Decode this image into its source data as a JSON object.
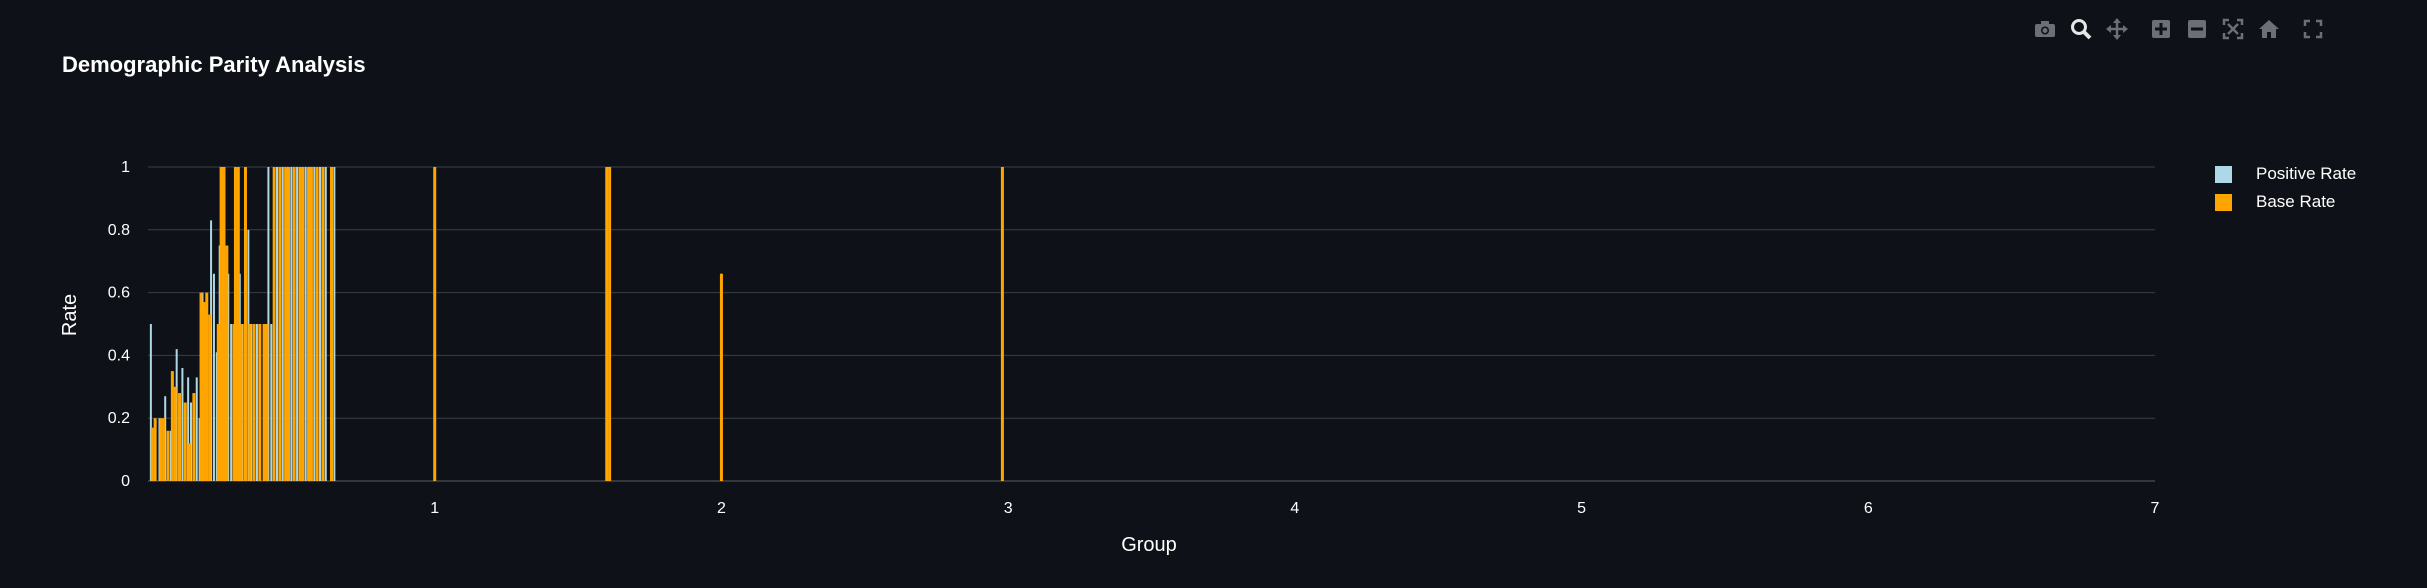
{
  "title": "Demographic Parity Analysis",
  "colors": {
    "background": "#0e1117",
    "grid": "#3a3f47",
    "positive": "#add8e6",
    "base": "#ffa500"
  },
  "modebar": [
    {
      "icon": "camera-icon"
    },
    {
      "icon": "zoom-icon"
    },
    {
      "icon": "pan-icon"
    },
    {
      "icon": "zoom-in-icon"
    },
    {
      "icon": "zoom-out-icon"
    },
    {
      "icon": "autoscale-icon"
    },
    {
      "icon": "home-icon"
    },
    {
      "icon": "fullscreen-icon"
    }
  ],
  "legend": [
    {
      "label": "Positive Rate",
      "color": "#add8e6"
    },
    {
      "label": "Base Rate",
      "color": "#ffa500"
    }
  ],
  "chart_data": {
    "type": "bar",
    "title": "Demographic Parity Analysis",
    "xlabel": "Group",
    "ylabel": "Rate",
    "xlim": [
      0,
      7
    ],
    "ylim": [
      0,
      1
    ],
    "xticks": [
      "1",
      "2",
      "3",
      "4",
      "5",
      "6",
      "7"
    ],
    "yticks": [
      "0",
      "0.2",
      "0.4",
      "0.6",
      "0.8",
      "1"
    ],
    "grid": true,
    "legend_position": "top-right",
    "series": [
      {
        "name": "Positive Rate",
        "color": "#add8e6",
        "x": [
          0.01,
          0.04,
          0.06,
          0.08,
          0.1,
          0.12,
          0.14,
          0.15,
          0.17,
          0.18,
          0.19,
          0.2,
          0.22,
          0.23,
          0.24,
          0.25,
          0.26,
          0.27,
          0.28,
          0.29,
          0.31,
          0.32,
          0.33,
          0.35,
          0.36,
          0.38,
          0.41,
          0.42,
          0.43,
          0.45,
          0.47,
          0.5,
          0.52,
          0.55,
          0.58,
          0.6,
          0.62,
          0.65,
          1.0,
          1.6,
          2.0,
          2.98
        ],
        "values": [
          0.5,
          0.2,
          0.27,
          0.16,
          0.42,
          0.36,
          0.33,
          0.25,
          0.33,
          0.2,
          0.6,
          0.55,
          0.83,
          0.66,
          0.41,
          0.75,
          0.65,
          0.5,
          0.66,
          0.5,
          0.5,
          0.66,
          0.5,
          0.8,
          0.5,
          0.5,
          0.5,
          1.0,
          0.5,
          1.0,
          1.0,
          1.0,
          1.0,
          1.0,
          1.0,
          1.0,
          1.0,
          1.0,
          1.0,
          1.0,
          0.66,
          1.0
        ]
      },
      {
        "name": "Base Rate",
        "color": "#ffa500",
        "x": [
          0.015,
          0.025,
          0.045,
          0.055,
          0.07,
          0.085,
          0.095,
          0.11,
          0.13,
          0.145,
          0.16,
          0.185,
          0.195,
          0.205,
          0.215,
          0.245,
          0.255,
          0.265,
          0.275,
          0.3,
          0.305,
          0.315,
          0.325,
          0.34,
          0.355,
          0.37,
          0.39,
          0.405,
          0.415,
          0.44,
          0.46,
          0.48,
          0.49,
          0.51,
          0.53,
          0.54,
          0.56,
          0.57,
          0.59,
          0.61,
          0.64,
          1.0,
          1.6,
          1.61,
          2.0,
          2.98
        ],
        "values": [
          0.17,
          0.2,
          0.2,
          0.2,
          0.16,
          0.35,
          0.3,
          0.28,
          0.25,
          0.12,
          0.28,
          0.6,
          0.57,
          0.6,
          0.53,
          0.5,
          1.0,
          1.0,
          0.75,
          0.5,
          1.0,
          1.0,
          0.5,
          1.0,
          0.5,
          0.5,
          0.5,
          0.5,
          0.5,
          1.0,
          1.0,
          1.0,
          1.0,
          1.0,
          1.0,
          1.0,
          1.0,
          1.0,
          1.0,
          1.0,
          1.0,
          1.0,
          1.0,
          1.0,
          0.66,
          1.0
        ]
      }
    ]
  }
}
